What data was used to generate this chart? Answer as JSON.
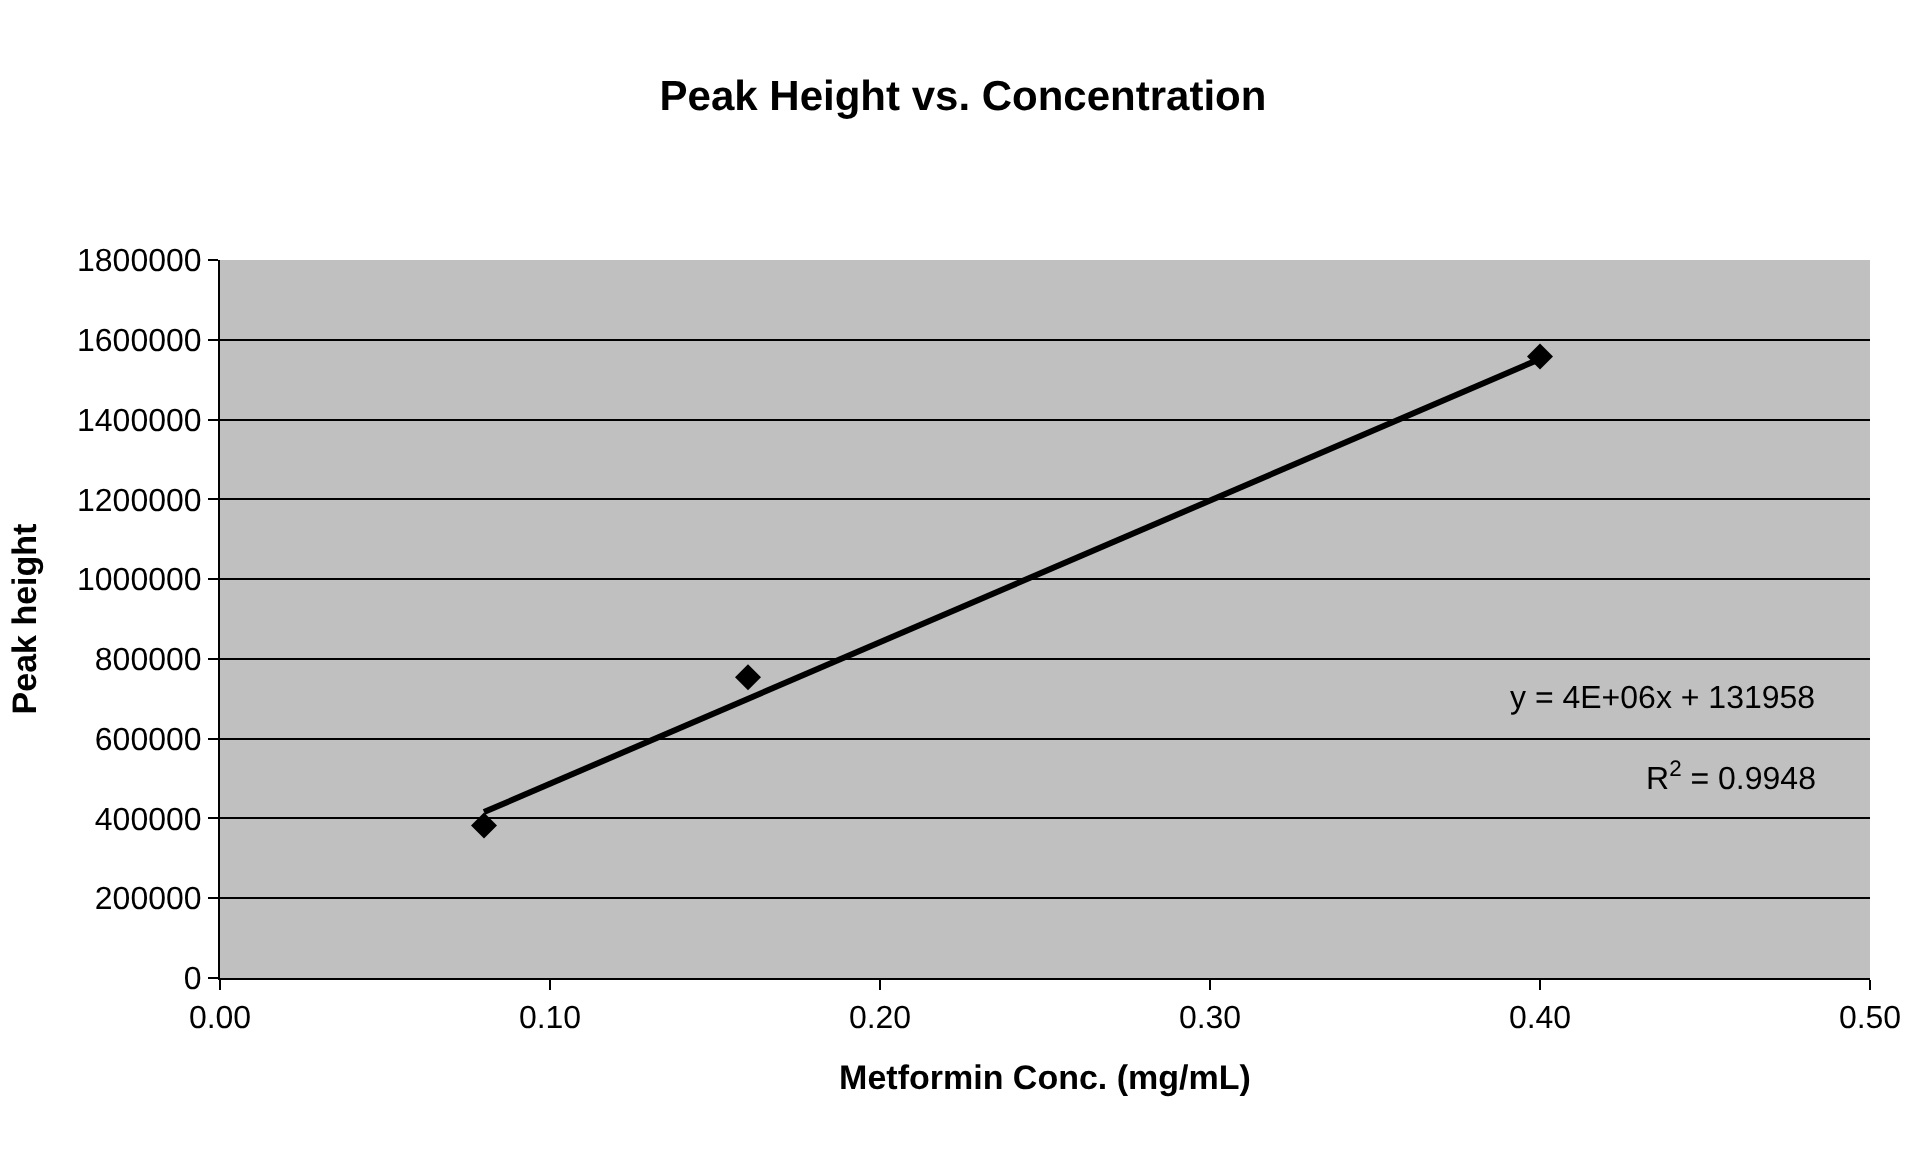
{
  "chart_data": {
    "type": "scatter",
    "title": "Peak Height vs. Concentration",
    "xlabel": "Metformin Conc. (mg/mL)",
    "ylabel": "Peak height",
    "xlim": [
      0,
      0.5
    ],
    "xticks": [
      {
        "value": 0,
        "label": "0.00"
      },
      {
        "value": 0.1,
        "label": "0.10"
      },
      {
        "value": 0.2,
        "label": "0.20"
      },
      {
        "value": 0.3,
        "label": "0.30"
      },
      {
        "value": 0.4,
        "label": "0.40"
      },
      {
        "value": 0.5,
        "label": "0.50"
      }
    ],
    "ylim": [
      0,
      1800000
    ],
    "yticks": [
      0,
      200000,
      400000,
      600000,
      800000,
      1000000,
      1200000,
      1400000,
      1600000,
      1800000
    ],
    "grid": "y",
    "marker": "diamond",
    "series": [
      {
        "color": "#000000",
        "x": [
          0.08,
          0.16,
          0.4
        ],
        "values": [
          382000,
          754000,
          1558000
        ]
      },
      {
        "type": "line",
        "color": "#000000",
        "x": [
          0.08,
          0.4
        ],
        "values": [
          416000,
          1552000
        ],
        "marker": "none"
      }
    ],
    "annotations": [
      "y = 4E+06x + 131958",
      "R$^{2}$ = 0.9948"
    ]
  }
}
